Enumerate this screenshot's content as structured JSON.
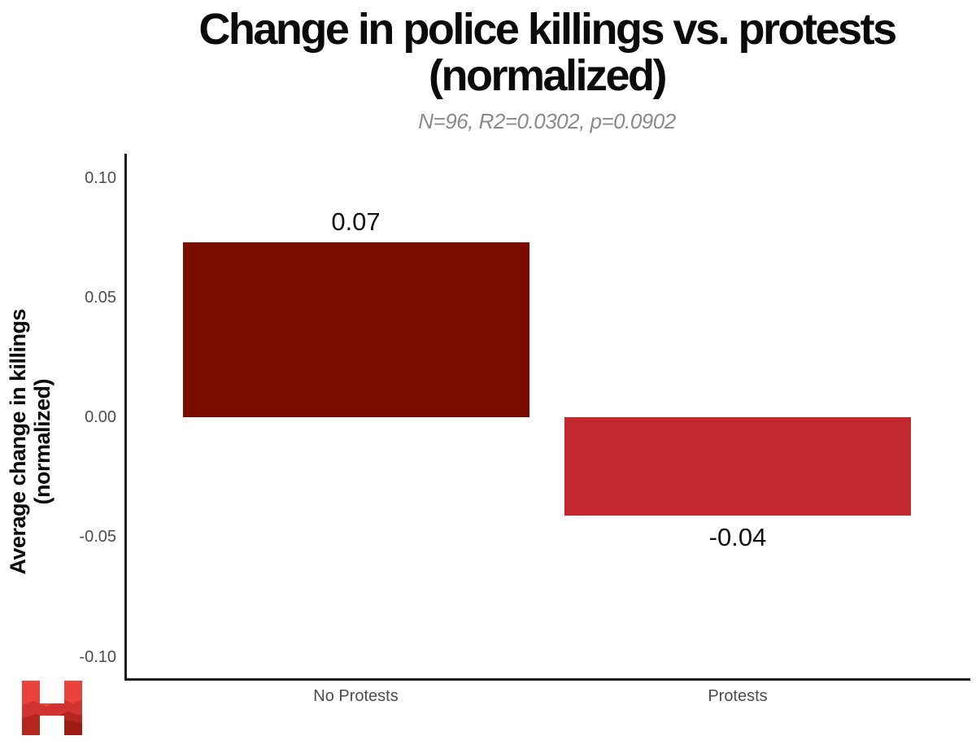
{
  "chart_data": {
    "type": "bar",
    "title": "Change in police killings vs. protests (normalized)",
    "subtitle": "N=96, R2=0.0302, p=0.0902",
    "xlabel": "",
    "ylabel": "Average change in killings (normalized)",
    "categories": [
      "No Protests",
      "Protests"
    ],
    "values": [
      0.073,
      -0.041
    ],
    "value_labels": [
      "0.07",
      "-0.04"
    ],
    "bar_colors": [
      "#7B0C00",
      "#C3282E"
    ],
    "ylim": [
      -0.11,
      0.11
    ],
    "yticks": [
      "0.10",
      "0.05",
      "0.00",
      "-0.05",
      "-0.10"
    ],
    "ytick_values": [
      0.1,
      0.05,
      0.0,
      -0.05,
      -0.1
    ],
    "grid": false,
    "legend": "none",
    "stats": {
      "N": "96",
      "R2": "0.0302",
      "p": "0.0902"
    },
    "colors": {
      "title": "#0a0a0a",
      "subtitle": "#8a8a8a",
      "axis": "#1b1b1b",
      "tick_label": "#4d4d4d",
      "value_label": "#111111"
    }
  },
  "branding": {
    "logo_name": "h-logo",
    "logo_colors": {
      "base": "#EA433C",
      "wave_mid": "#D13430",
      "wave_dark": "#B5261F",
      "wave_darkest": "#9D1D15"
    }
  }
}
